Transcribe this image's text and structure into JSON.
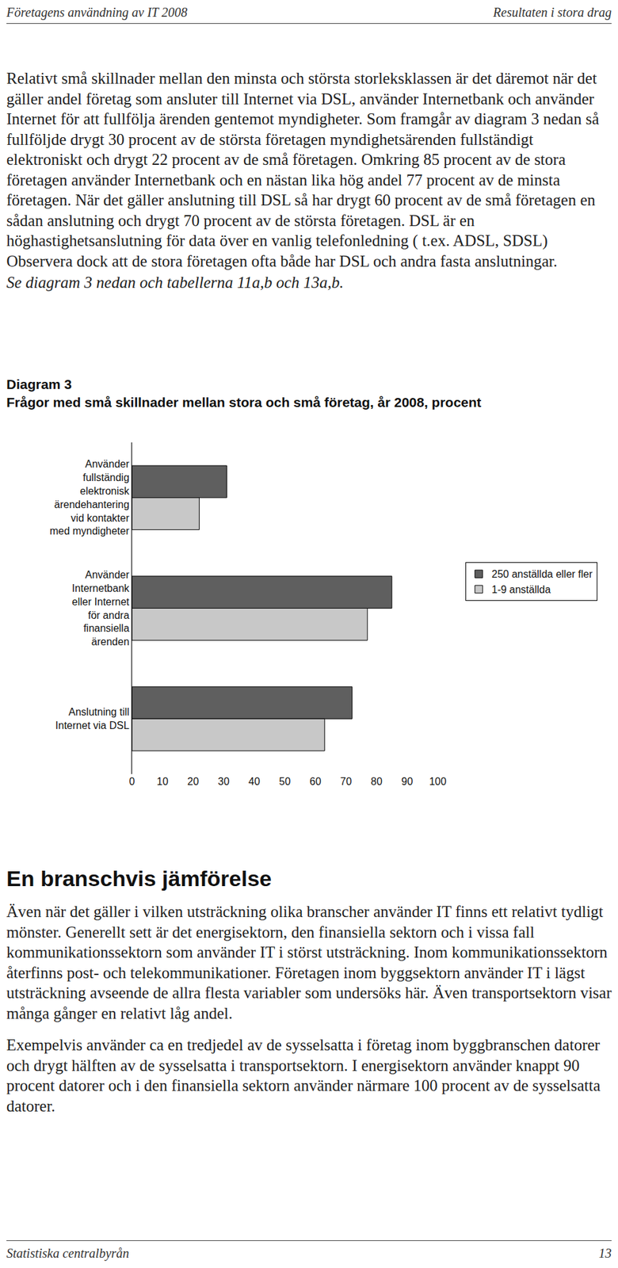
{
  "header": {
    "left": "Företagens användning av IT 2008",
    "right": "Resultaten i stora drag"
  },
  "intro": {
    "paragraph": "Relativt små skillnader mellan den minsta och största storleksklassen är det däremot när det gäller andel företag som ansluter till Internet via DSL, använder Internetbank och använder Internet för att fullfölja ärenden gentemot myndigheter. Som framgår av diagram 3 nedan så fullföljde drygt 30 procent av de största företagen myndighetsärenden fullständigt elektroniskt och drygt 22 procent av de små företagen. Omkring 85 procent av de stora företagen använder Internetbank och en nästan lika hög andel 77 procent av de minsta företagen. När det gäller anslutning till DSL så har drygt 60 procent av de små företagen en sådan anslutning och drygt 70 procent av de största företagen. DSL är en höghastighetsanslutning för data över en vanlig telefonledning ( t.ex. ADSL, SDSL) Observera dock att de stora företagen ofta både har DSL och andra fasta anslutningar.",
    "reference": "Se diagram 3 nedan och tabellerna 11a,b och 13a,b."
  },
  "chart_data": {
    "type": "bar",
    "orientation": "horizontal",
    "label": "Diagram 3",
    "title": "Frågor med små skillnader mellan stora och små företag, år 2008, procent",
    "categories": [
      "Använder fullständig elektronisk ärendehantering vid kontakter med myndigheter",
      "Använder Internetbank eller Internet för andra finansiella ärenden",
      "Anslutning till Internet via DSL"
    ],
    "series": [
      {
        "name": "250 anställda eller fler",
        "color": "#5f5f5f",
        "values": [
          31,
          85,
          72
        ]
      },
      {
        "name": "1-9 anställda",
        "color": "#c8c8c8",
        "values": [
          22,
          77,
          63
        ]
      }
    ],
    "xlim": [
      0,
      100
    ],
    "xticks": [
      0,
      10,
      20,
      30,
      40,
      50,
      60,
      70,
      80,
      90,
      100
    ],
    "grid": false,
    "legend": "right"
  },
  "section": {
    "heading": "En branschvis jämförelse",
    "paragraphs": [
      "Även när det gäller i vilken utsträckning olika branscher använder IT finns ett relativt tydligt mönster. Generellt sett är det energisektorn, den finansiella sektorn och i vissa fall kommunikationssektorn som använder IT i störst utsträckning. Inom kommunikationssektorn återfinns post- och telekommunikationer. Företagen inom byggsektorn använder IT i lägst utsträckning avseende de allra flesta variabler som undersöks här. Även transportsektorn visar många gånger en relativt låg andel.",
      "Exempelvis använder ca en tredjedel av de sysselsatta i företag inom byggbranschen datorer och drygt hälften av de sysselsatta i transportsektorn. I energisektorn använder knappt 90 procent datorer och i den finansiella sektorn använder närmare 100 procent av de sysselsatta datorer."
    ]
  },
  "footer": {
    "left": "Statistiska centralbyrån",
    "right": "13"
  }
}
